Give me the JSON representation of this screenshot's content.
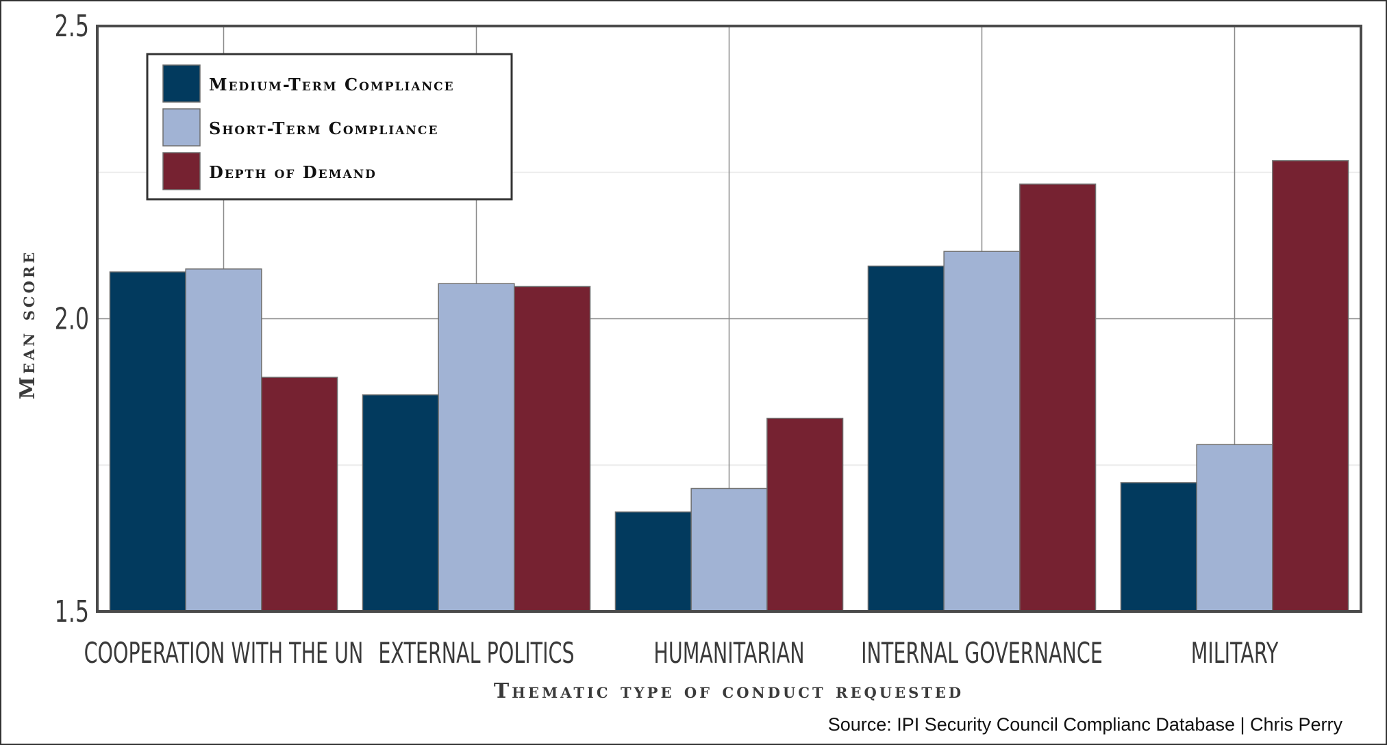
{
  "chart_data": {
    "type": "bar",
    "categories": [
      "Cooperation with the UN",
      "External Politics",
      "Humanitarian",
      "Internal Governance",
      "Military"
    ],
    "series": [
      {
        "name": "Medium-Term Compliance",
        "color": "#023a5e",
        "values": [
          2.08,
          1.87,
          1.67,
          2.09,
          1.72
        ]
      },
      {
        "name": "Short-Term Compliance",
        "color": "#a1b3d4",
        "values": [
          2.085,
          2.06,
          1.71,
          2.115,
          1.785
        ]
      },
      {
        "name": "Depth of Demand",
        "color": "#762231",
        "values": [
          1.9,
          2.055,
          1.83,
          2.23,
          2.27
        ]
      }
    ],
    "xlabel": "Thematic type of conduct requested",
    "ylabel": "Mean score",
    "ylim": [
      1.5,
      2.5
    ],
    "yticks": [
      "1.5",
      "2.0",
      "2.5"
    ],
    "grid": true,
    "legend_position": "top-left",
    "source": "Source: IPI Security Council Complianc Database | Chris Perry"
  }
}
